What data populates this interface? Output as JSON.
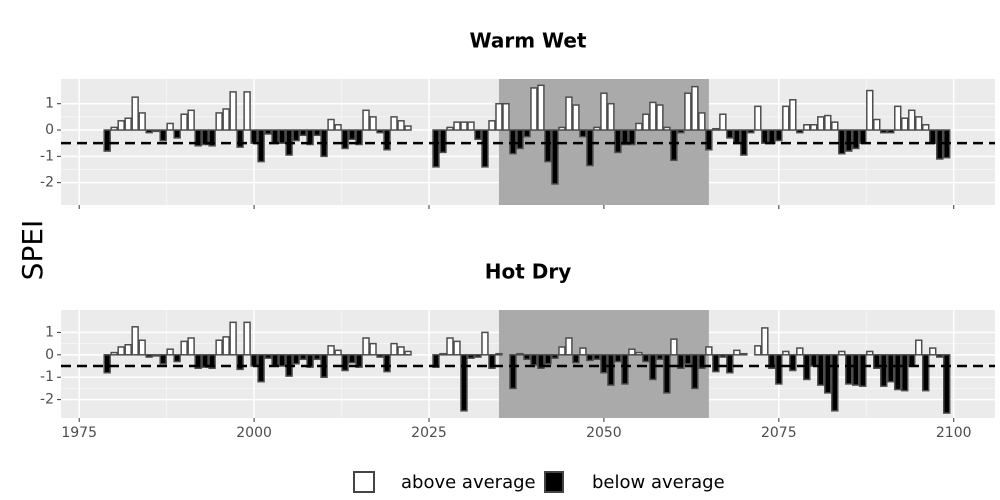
{
  "y_label": "SPEI",
  "legend": {
    "labels": [
      "above average",
      "below average"
    ],
    "colors": [
      "#ffffff",
      "#000000"
    ]
  },
  "chart_data": [
    {
      "type": "bar",
      "title": "Warm Wet",
      "x": [
        1979,
        1980,
        1981,
        1982,
        1983,
        1984,
        1985,
        1986,
        1987,
        1988,
        1989,
        1990,
        1991,
        1992,
        1993,
        1994,
        1995,
        1996,
        1997,
        1998,
        1999,
        2000,
        2001,
        2002,
        2003,
        2004,
        2005,
        2006,
        2007,
        2008,
        2009,
        2010,
        2011,
        2012,
        2013,
        2014,
        2015,
        2016,
        2017,
        2018,
        2019,
        2020,
        2021,
        2022,
        2023,
        2024,
        2025,
        2026,
        2027,
        2028,
        2029,
        2030,
        2031,
        2032,
        2033,
        2034,
        2035,
        2036,
        2037,
        2038,
        2039,
        2040,
        2041,
        2042,
        2043,
        2044,
        2045,
        2046,
        2047,
        2048,
        2049,
        2050,
        2051,
        2052,
        2053,
        2054,
        2055,
        2056,
        2057,
        2058,
        2059,
        2060,
        2061,
        2062,
        2063,
        2064,
        2065,
        2066,
        2067,
        2068,
        2069,
        2070,
        2071,
        2072,
        2073,
        2074,
        2075,
        2076,
        2077,
        2078,
        2079,
        2080,
        2081,
        2082,
        2083,
        2084,
        2085,
        2086,
        2087,
        2088,
        2089,
        2090,
        2091,
        2092,
        2093,
        2094,
        2095,
        2096,
        2097,
        2098,
        2099
      ],
      "values": [
        -0.8,
        0.1,
        0.35,
        0.45,
        1.25,
        0.65,
        -0.1,
        -0.05,
        -0.4,
        0.25,
        -0.3,
        0.6,
        0.75,
        -0.6,
        -0.55,
        -0.6,
        0.65,
        0.8,
        1.45,
        -0.65,
        1.45,
        -0.5,
        -1.2,
        -0.15,
        -0.5,
        -0.5,
        -0.95,
        -0.4,
        -0.2,
        -0.55,
        -0.2,
        -1.0,
        0.4,
        0.2,
        -0.7,
        -0.35,
        -0.55,
        0.75,
        0.5,
        -0.1,
        -0.75,
        0.5,
        0.35,
        0.15,
        null,
        null,
        null,
        -1.4,
        -0.85,
        0.1,
        0.3,
        0.3,
        0.3,
        -0.35,
        -1.4,
        0.35,
        1.0,
        1.0,
        -0.9,
        -0.7,
        -0.25,
        1.6,
        1.7,
        -1.2,
        -2.05,
        0.1,
        1.25,
        0.95,
        -0.25,
        -1.35,
        0.1,
        1.4,
        1.0,
        -0.85,
        -0.55,
        -0.55,
        0.25,
        0.6,
        1.05,
        0.95,
        0.1,
        -1.15,
        -0.1,
        1.4,
        1.65,
        0.65,
        -0.75,
        0.05,
        0.6,
        -0.3,
        -0.5,
        -0.95,
        -0.1,
        0.9,
        -0.5,
        -0.5,
        -0.4,
        0.9,
        1.15,
        -0.1,
        0.2,
        0.2,
        0.5,
        0.55,
        0.3,
        -0.9,
        -0.8,
        -0.7,
        -0.5,
        1.5,
        0.4,
        -0.1,
        -0.1,
        0.9,
        0.45,
        0.75,
        0.5,
        0.2,
        -0.5,
        -1.1,
        -1.05
      ],
      "xlim": [
        1972.4,
        2105.9
      ],
      "xticks": [
        1975,
        2000,
        2025,
        2050,
        2075,
        2100
      ],
      "xtick_labels": false,
      "ylim": [
        -2.85,
        1.94
      ],
      "yticks": [
        -2,
        -1,
        0,
        1
      ],
      "grid": true,
      "highlight": [
        2035,
        2065
      ],
      "reference_line": -0.5
    },
    {
      "type": "bar",
      "title": "Hot Dry",
      "x": [
        1979,
        1980,
        1981,
        1982,
        1983,
        1984,
        1985,
        1986,
        1987,
        1988,
        1989,
        1990,
        1991,
        1992,
        1993,
        1994,
        1995,
        1996,
        1997,
        1998,
        1999,
        2000,
        2001,
        2002,
        2003,
        2004,
        2005,
        2006,
        2007,
        2008,
        2009,
        2010,
        2011,
        2012,
        2013,
        2014,
        2015,
        2016,
        2017,
        2018,
        2019,
        2020,
        2021,
        2022,
        2023,
        2024,
        2025,
        2026,
        2027,
        2028,
        2029,
        2030,
        2031,
        2032,
        2033,
        2034,
        2035,
        2036,
        2037,
        2038,
        2039,
        2040,
        2041,
        2042,
        2043,
        2044,
        2045,
        2046,
        2047,
        2048,
        2049,
        2050,
        2051,
        2052,
        2053,
        2054,
        2055,
        2056,
        2057,
        2058,
        2059,
        2060,
        2061,
        2062,
        2063,
        2064,
        2065,
        2066,
        2067,
        2068,
        2069,
        2070,
        2071,
        2072,
        2073,
        2074,
        2075,
        2076,
        2077,
        2078,
        2079,
        2080,
        2081,
        2082,
        2083,
        2084,
        2085,
        2086,
        2087,
        2088,
        2089,
        2090,
        2091,
        2092,
        2093,
        2094,
        2095,
        2096,
        2097,
        2098,
        2099
      ],
      "values": [
        -0.8,
        0.1,
        0.35,
        0.45,
        1.25,
        0.65,
        -0.1,
        -0.05,
        -0.4,
        0.25,
        -0.3,
        0.6,
        0.75,
        -0.6,
        -0.55,
        -0.6,
        0.65,
        0.8,
        1.45,
        -0.65,
        1.45,
        -0.5,
        -1.2,
        -0.15,
        -0.5,
        -0.5,
        -0.95,
        -0.4,
        -0.2,
        -0.55,
        -0.2,
        -1.0,
        0.4,
        0.2,
        -0.7,
        -0.35,
        -0.55,
        0.75,
        0.5,
        -0.1,
        -0.75,
        0.5,
        0.35,
        0.15,
        null,
        null,
        null,
        -0.55,
        0.05,
        0.75,
        0.6,
        -2.5,
        -0.15,
        -0.1,
        1.0,
        -0.6,
        0.05,
        0.0,
        -1.5,
        0.05,
        -0.2,
        -0.45,
        -0.6,
        -0.4,
        -0.15,
        0.35,
        0.75,
        -0.35,
        0.3,
        -0.25,
        -0.2,
        -0.8,
        -1.35,
        -0.3,
        -1.3,
        0.25,
        0.1,
        -0.3,
        -1.1,
        -0.2,
        -1.7,
        0.7,
        -0.6,
        -0.4,
        -1.5,
        -0.6,
        0.35,
        -0.75,
        -0.1,
        -0.8,
        0.2,
        0.05,
        0.0,
        0.4,
        1.2,
        -0.6,
        -1.3,
        0.15,
        -0.7,
        0.3,
        -1.1,
        -0.5,
        -1.35,
        -1.7,
        -2.5,
        0.15,
        -1.3,
        -1.35,
        -1.4,
        0.15,
        -0.6,
        -1.4,
        -1.2,
        -1.55,
        -1.6,
        -0.5,
        0.65,
        -1.6,
        0.3,
        -0.1,
        -2.6
      ],
      "xlim": [
        1972.4,
        2105.9
      ],
      "xticks": [
        1975,
        2000,
        2025,
        2050,
        2075,
        2100
      ],
      "xtick_labels": true,
      "ylim": [
        -2.82,
        2.0
      ],
      "yticks": [
        -2,
        -1,
        0,
        1
      ],
      "grid": true,
      "highlight": [
        2035,
        2065
      ],
      "reference_line": -0.5
    }
  ]
}
